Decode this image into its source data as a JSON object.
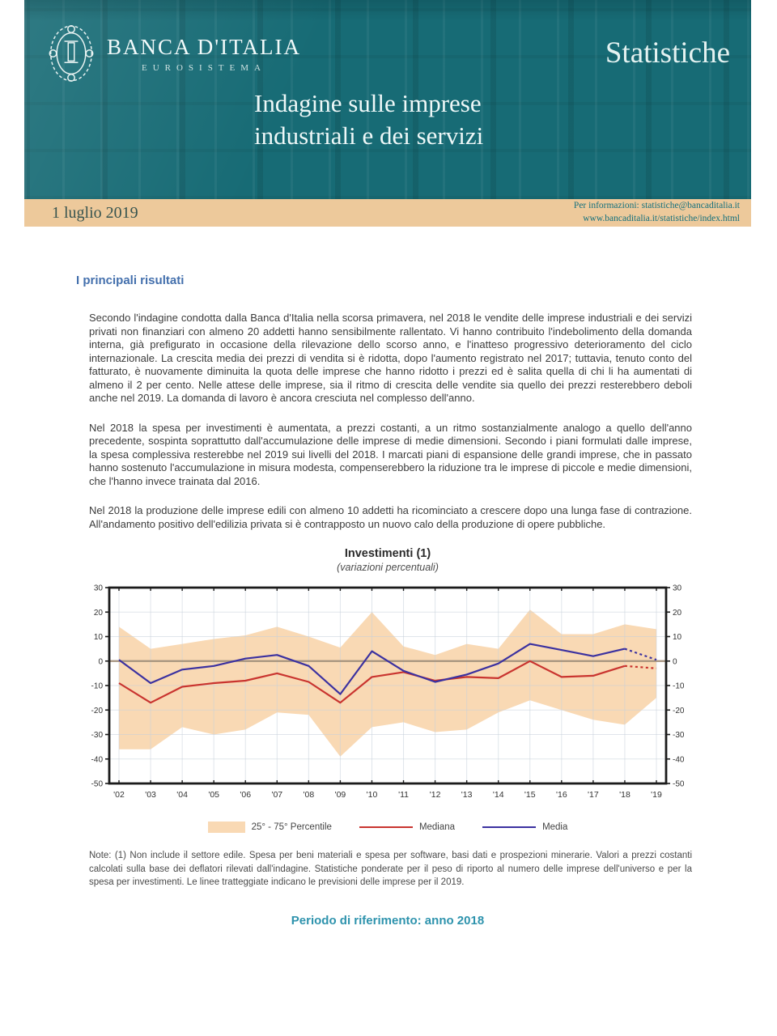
{
  "header": {
    "brand": "BANCA D'ITALIA",
    "brand_sub": "EUROSISTEMA",
    "publication": "Statistiche",
    "title_line1": "Indagine sulle imprese",
    "title_line2": "industriali e dei servizi"
  },
  "date_bar": {
    "date": "1 luglio 2019",
    "info_line1": "Per informazioni: statistiche@bancaditalia.it",
    "info_line2": "www.bancaditalia.it/statistiche/index.html"
  },
  "main": {
    "section_heading": "I principali risultati",
    "paragraphs": [
      "Secondo l'indagine condotta dalla Banca d'Italia nella scorsa primavera, nel 2018 le vendite delle imprese industriali e dei servizi privati non finanziari con almeno 20 addetti hanno sensibilmente rallentato. Vi hanno contribuito l'indebolimento della domanda interna, già prefigurato in occasione della rilevazione dello scorso anno, e l'inatteso progressivo deterioramento del ciclo internazionale. La crescita media dei prezzi di vendita si è ridotta, dopo l'aumento registrato nel 2017; tuttavia, tenuto conto del fatturato, è nuovamente diminuita la quota delle imprese che hanno ridotto i prezzi ed è salita quella di chi li ha aumentati di almeno il 2 per cento. Nelle attese delle imprese, sia il ritmo di crescita delle vendite sia quello dei prezzi resterebbero deboli anche nel 2019. La domanda di lavoro è ancora cresciuta nel complesso dell'anno.",
      "Nel 2018 la spesa per investimenti è aumentata, a prezzi costanti, a un ritmo sostanzialmente analogo a quello dell'anno precedente, sospinta soprattutto dall'accumulazione delle imprese di medie dimensioni. Secondo i piani formulati dalle imprese, la spesa complessiva resterebbe nel 2019 sui livelli del 2018. I marcati piani di espansione delle grandi imprese, che in passato hanno sostenuto l'accumulazione in misura modesta, compenserebbero la riduzione tra le imprese di piccole e medie dimensioni, che l'hanno invece trainata dal 2016.",
      "Nel 2018 la produzione delle imprese edili con almeno 10 addetti ha ricominciato a crescere dopo una lunga fase di contrazione. All'andamento positivo dell'edilizia privata si è contrapposto un nuovo calo della produzione di opere pubbliche."
    ],
    "note": "Note: (1) Non include il settore edile. Spesa per beni materiali e spesa per software, basi dati e prospezioni minerarie. Valori a prezzi costanti calcolati sulla base dei deflatori rilevati dall'indagine. Statistiche ponderate per il peso di riporto al numero delle imprese dell'universo e per la spesa per investimenti. Le linee tratteggiate indicano le previsioni delle imprese per il 2019.",
    "footer": "Periodo di riferimento: anno 2018"
  },
  "colors": {
    "header_teal": "#176b75",
    "date_bar_tan": "#edc99b",
    "heading_blue": "#4470ad",
    "footer_teal": "#2e93ad"
  },
  "chart_data": {
    "type": "line",
    "title": "Investimenti (1)",
    "subtitle": "(variazioni percentuali)",
    "x": [
      "'02",
      "'03",
      "'04",
      "'05",
      "'06",
      "'07",
      "'08",
      "'09",
      "'10",
      "'11",
      "'12",
      "'13",
      "'14",
      "'15",
      "'16",
      "'17",
      "'18",
      "'19"
    ],
    "series": [
      {
        "name": "25° - 75° Percentile",
        "type": "band",
        "color": "#f9d9b4",
        "upper": [
          14,
          5,
          7,
          9,
          10.5,
          14,
          10,
          5.5,
          20,
          6,
          2.5,
          7,
          5,
          21,
          11,
          11,
          15,
          13
        ],
        "lower": [
          -36,
          -36,
          -27,
          -30,
          -28,
          -21,
          -22,
          -39,
          -27,
          -25,
          -29,
          -28,
          -21,
          -16,
          -20,
          -24,
          -26,
          -15
        ]
      },
      {
        "name": "Mediana",
        "color": "#c9342f",
        "values": [
          -9,
          -17,
          -10.5,
          -9,
          -8,
          -5,
          -8.5,
          -17,
          -6.5,
          -4.5,
          -8,
          -6.5,
          -7,
          0,
          -6.5,
          -6,
          -2,
          -3
        ]
      },
      {
        "name": "Media",
        "color": "#3b31a0",
        "values": [
          0.5,
          -9,
          -3.5,
          -2,
          1,
          2.5,
          -2,
          -13.5,
          4,
          -4,
          -8.5,
          -5.5,
          -1,
          7,
          4.5,
          2,
          5,
          0.5
        ]
      }
    ],
    "ylim": [
      -50,
      30
    ],
    "ytick_step": 10,
    "zero_line": true,
    "zero_line_color": "#a5937e",
    "dashed_from_index": 16,
    "grid": true,
    "legend_position": "bottom"
  }
}
